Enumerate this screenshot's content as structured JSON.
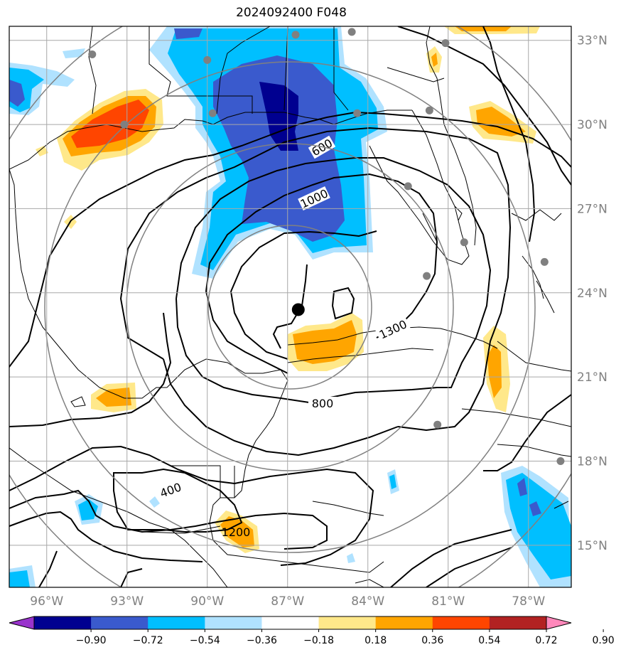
{
  "title": "2024092400 F048",
  "map": {
    "lat_labels": [
      "33°N",
      "30°N",
      "27°N",
      "24°N",
      "21°N",
      "18°N",
      "15°N"
    ],
    "lon_labels": [
      "96°W",
      "93°W",
      "90°W",
      "87°W",
      "84°W",
      "81°W",
      "78°W"
    ],
    "contour_labels": [
      "600",
      "1000",
      "1300",
      "800",
      "400",
      "1200"
    ],
    "storm_center": {
      "lat": 23.4,
      "lon": -86.6
    },
    "stations": [
      {
        "lat": 32.5,
        "lon": -94.3
      },
      {
        "lat": 32.3,
        "lon": -90.0
      },
      {
        "lat": 33.2,
        "lon": -86.7
      },
      {
        "lat": 33.3,
        "lon": -84.6
      },
      {
        "lat": 32.9,
        "lon": -81.1
      },
      {
        "lat": 30.0,
        "lon": -93.1
      },
      {
        "lat": 30.4,
        "lon": -89.8
      },
      {
        "lat": 30.4,
        "lon": -84.4
      },
      {
        "lat": 30.5,
        "lon": -81.7
      },
      {
        "lat": 27.8,
        "lon": -82.5
      },
      {
        "lat": 25.8,
        "lon": -80.4
      },
      {
        "lat": 24.6,
        "lon": -81.8
      },
      {
        "lat": 25.1,
        "lon": -77.4
      },
      {
        "lat": 19.3,
        "lon": -81.4
      },
      {
        "lat": 18.0,
        "lon": -76.8
      }
    ]
  },
  "colorbar": {
    "tick_labels": [
      "−0.90",
      "−0.72",
      "−0.54",
      "−0.36",
      "−0.18",
      "0.18",
      "0.36",
      "0.54",
      "0.72",
      "0.90"
    ],
    "colors": [
      "#9933cc",
      "#000090",
      "#3a5acd",
      "#00bfff",
      "#b0e2ff",
      "#ffffff",
      "#ffe88a",
      "#ffa500",
      "#ff4500",
      "#b22222",
      "#ff88bb"
    ]
  }
}
